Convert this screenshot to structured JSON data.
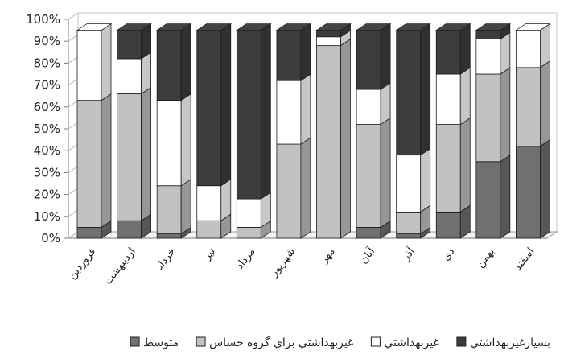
{
  "chart_data": {
    "type": "bar",
    "stacked": true,
    "style": "3d",
    "title": "",
    "xlabel": "",
    "ylabel": "",
    "ylim": [
      0,
      100
    ],
    "y_ticks": [
      "0%",
      "10%",
      "20%",
      "30%",
      "40%",
      "50%",
      "60%",
      "70%",
      "80%",
      "90%",
      "100%"
    ],
    "grid": false,
    "legend_position": "bottom",
    "categories": [
      "فروردين",
      "ارديبهشت",
      "خرداد",
      "تير",
      "مرداد",
      "شهريور",
      "مهر",
      "آبان",
      "آذر",
      "دي",
      "بهمن",
      "اسفند"
    ],
    "series": [
      {
        "name": "متوسط",
        "color": "#707070",
        "values": [
          5,
          8,
          2,
          0,
          0,
          0,
          0,
          5,
          2,
          12,
          35,
          42
        ]
      },
      {
        "name": "غيربهداشتي براي گروه حساس",
        "color": "#c2c2c2",
        "values": [
          58,
          58,
          22,
          8,
          5,
          43,
          88,
          47,
          10,
          40,
          40,
          36
        ]
      },
      {
        "name": "غيربهداشتي",
        "color": "#ffffff",
        "values": [
          32,
          16,
          39,
          16,
          13,
          29,
          4,
          16,
          26,
          23,
          16,
          17
        ]
      },
      {
        "name": "بسيارغيربهداشتي",
        "color": "#3d3d3d",
        "values": [
          0,
          13,
          32,
          71,
          77,
          23,
          3,
          27,
          57,
          20,
          4,
          0
        ]
      }
    ]
  }
}
